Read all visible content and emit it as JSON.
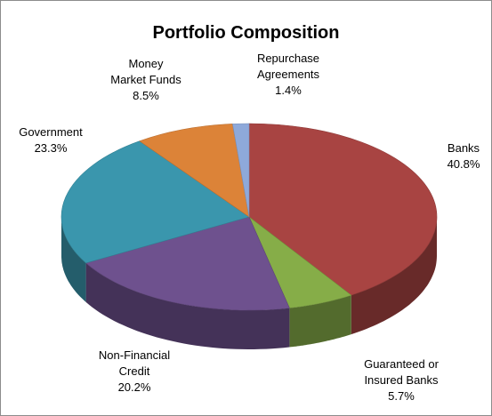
{
  "chart_data": {
    "type": "pie",
    "title": "Portfolio Composition",
    "slices": [
      {
        "name": "Banks",
        "label_lines": [
          "Banks"
        ],
        "value": 40.8,
        "value_label": "40.8%",
        "color": "#a84442"
      },
      {
        "name": "Guaranteed or Insured Banks",
        "label_lines": [
          "Guaranteed or",
          "Insured Banks"
        ],
        "value": 5.7,
        "value_label": "5.7%",
        "color": "#86ad48"
      },
      {
        "name": "Non-Financial Credit",
        "label_lines": [
          "Non-Financial",
          "Credit"
        ],
        "value": 20.2,
        "value_label": "20.2%",
        "color": "#6e518e"
      },
      {
        "name": "Government",
        "label_lines": [
          "Government"
        ],
        "value": 23.3,
        "value_label": "23.3%",
        "color": "#3a96ad"
      },
      {
        "name": "Money Market Funds",
        "label_lines": [
          "Money",
          "Market Funds"
        ],
        "value": 8.5,
        "value_label": "8.5%",
        "color": "#dc8338"
      },
      {
        "name": "Repurchase Agreements",
        "label_lines": [
          "Repurchase",
          "Agreements"
        ],
        "value": 1.4,
        "value_label": "1.4%",
        "color": "#8ea9da"
      }
    ],
    "start_position": "top",
    "direction": "clockwise",
    "style": "3d"
  }
}
